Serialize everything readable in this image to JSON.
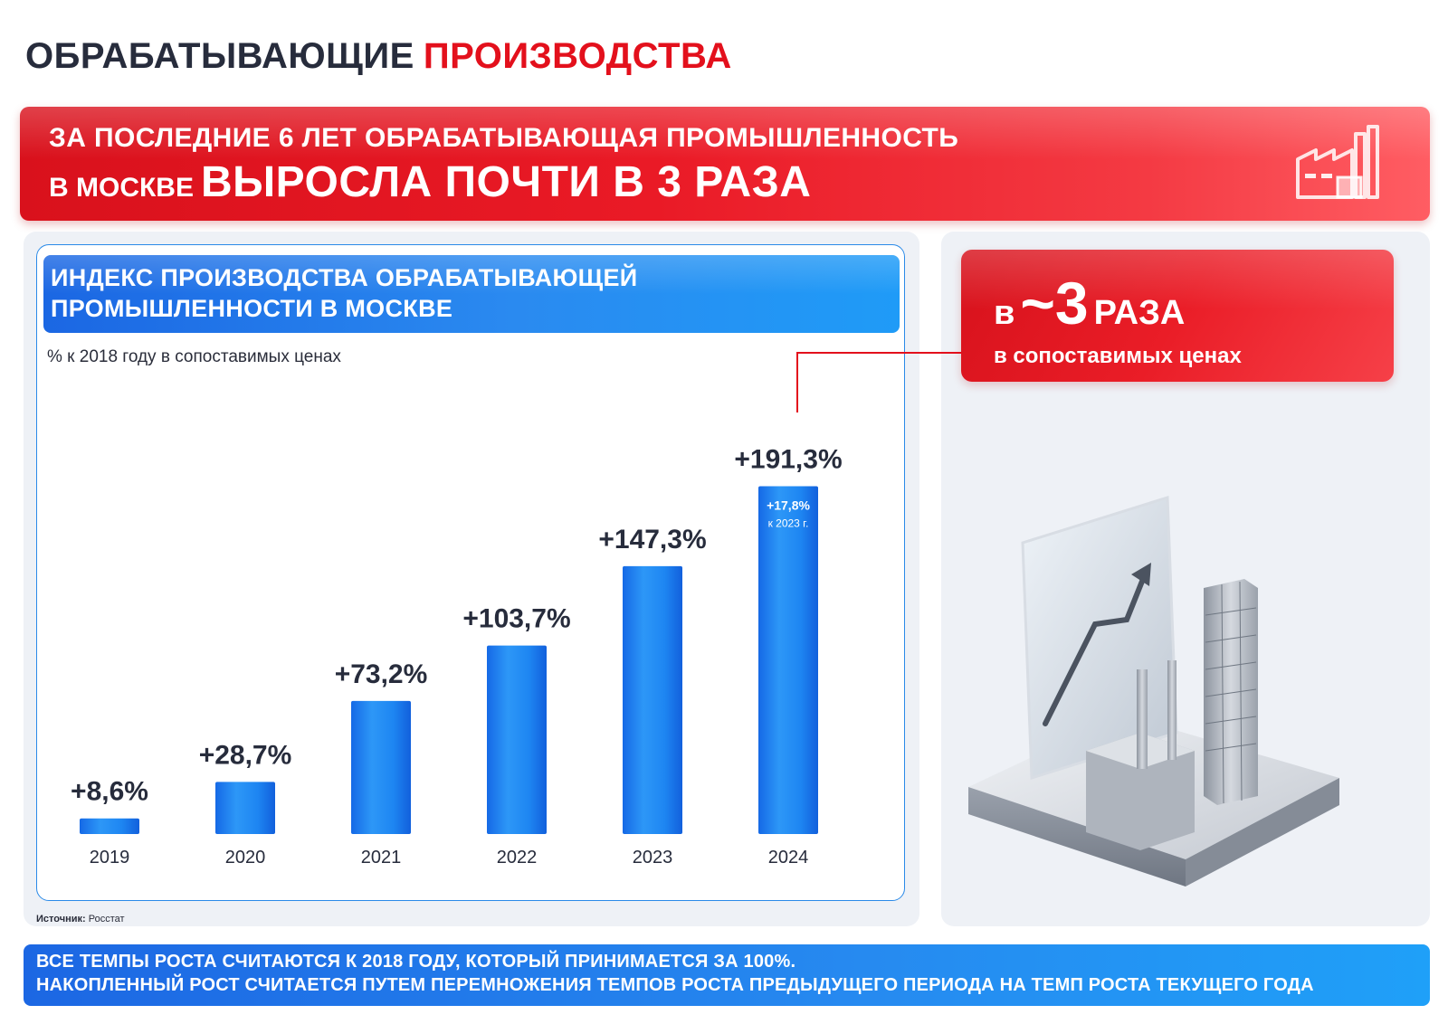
{
  "page": {
    "title_dark": "ОБРАБАТЫВАЮЩИЕ",
    "title_red": "ПРОИЗВОДСТВА"
  },
  "banner": {
    "line1": "ЗА ПОСЛЕДНИЕ 6 ЛЕТ ОБРАБАТЫВАЮЩАЯ ПРОМЫШЛЕННОСТЬ",
    "line2_small": "В МОСКВЕ",
    "line2_big": "ВЫРОСЛА ПОЧТИ В 3 РАЗА",
    "icon": "factory-icon"
  },
  "callout": {
    "prefix": "в",
    "number": "~3",
    "suffix": "РАЗА",
    "subtitle": "в сопоставимых ценах"
  },
  "source": {
    "label": "Источник:",
    "value": "Росстат"
  },
  "footer": {
    "line1": "ВСЕ ТЕМПЫ РОСТА СЧИТАЮТСЯ К 2018 ГОДУ, КОТОРЫЙ ПРИНИМАЕТСЯ ЗА 100%.",
    "line2": "НАКОПЛЕННЫЙ РОСТ СЧИТАЕТСЯ ПУТЕМ ПЕРЕМНОЖЕНИЯ ТЕМПОВ РОСТА ПРЕДЫДУЩЕГО ПЕРИОДА НА ТЕМП РОСТА ТЕКУЩЕГО ГОДА"
  },
  "colors": {
    "accent_red": "#e3101c",
    "accent_blue": "#1f7ef0",
    "text_dark": "#272c3c"
  },
  "chart_data": {
    "type": "bar",
    "title": "ИНДЕКС ПРОИЗВОДСТВА ОБРАБАТЫВАЮЩЕЙ ПРОМЫШЛЕННОСТИ В МОСКВЕ",
    "subtitle": "% к 2018 году в сопоставимых ценах",
    "categories": [
      "2019",
      "2020",
      "2021",
      "2022",
      "2023",
      "2024"
    ],
    "values": [
      8.6,
      28.7,
      73.2,
      103.7,
      147.3,
      191.3
    ],
    "value_labels": [
      "+8,6%",
      "+28,7%",
      "+73,2%",
      "+103,7%",
      "+147,3%",
      "+191,3%"
    ],
    "annotation": {
      "category": "2024",
      "value": "+17,8%",
      "note": "к 2023 г."
    },
    "ylim": [
      0,
      200
    ],
    "grid": false,
    "legend": "none",
    "xlabel": "",
    "ylabel": ""
  }
}
